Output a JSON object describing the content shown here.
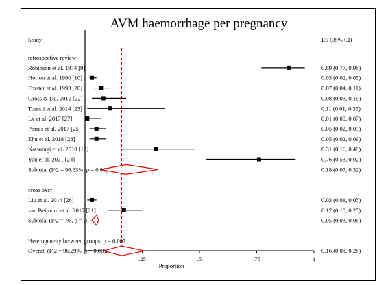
{
  "chart_data": {
    "type": "forest",
    "title": "AVM haemorrhage per pregnancy",
    "column_headers": {
      "study": "Study",
      "es": "ES (95% CI)"
    },
    "xlabel": "Proportion",
    "xlim": [
      0,
      1
    ],
    "xticks": [
      {
        "value": 0.25,
        "label": ".25"
      },
      {
        "value": 0.5,
        "label": ".5"
      },
      {
        "value": 0.75,
        "label": ".75"
      },
      {
        "value": 1,
        "label": "1"
      }
    ],
    "overall_reference_line": 0.16,
    "colors": {
      "summary": "#dd0000",
      "study": "#000000",
      "reference": "#dd0000"
    },
    "rows": [
      {
        "kind": "header",
        "label": "retrospective review"
      },
      {
        "kind": "study",
        "label": "Robinson et al. 1974 [9]",
        "es": 0.89,
        "lo": 0.77,
        "hi": 0.96,
        "text": "0.89 (0.77, 0.96)"
      },
      {
        "kind": "study",
        "label": "Horton et al. 1990 [10]",
        "es": 0.03,
        "lo": 0.02,
        "hi": 0.05,
        "text": "0.03 (0.02, 0.05)"
      },
      {
        "kind": "study",
        "label": "Forster et al. 1993 [20]",
        "es": 0.07,
        "lo": 0.04,
        "hi": 0.11,
        "text": "0.07 (0.04, 0.11)"
      },
      {
        "kind": "study",
        "label": "Gross & Du, 2012 [22]",
        "es": 0.08,
        "lo": 0.03,
        "hi": 0.18,
        "text": "0.08 (0.03, 0.18)"
      },
      {
        "kind": "study",
        "label": "Tonetti et al. 2014 [23]",
        "es": 0.11,
        "lo": 0.01,
        "hi": 0.35,
        "text": "0.11 (0.01, 0.35)"
      },
      {
        "kind": "study",
        "label": "Lv et al. 2017 [27]",
        "es": 0.01,
        "lo": 0.0,
        "hi": 0.07,
        "text": "0.01 (0.00, 0.07)"
      },
      {
        "kind": "study",
        "label": "Porras et al. 2017 [25]",
        "es": 0.05,
        "lo": 0.02,
        "hi": 0.09,
        "text": "0.05 (0.02, 0.09)"
      },
      {
        "kind": "study",
        "label": "Zhu et al. 2018 [28]",
        "es": 0.05,
        "lo": 0.02,
        "hi": 0.09,
        "text": "0.05 (0.02, 0.09)"
      },
      {
        "kind": "study",
        "label": "Katsuragi et al. 2018 [12]",
        "es": 0.31,
        "lo": 0.16,
        "hi": 0.48,
        "text": "0.31 (0.16, 0.48)"
      },
      {
        "kind": "study",
        "label": "Yan et al. 2021 [24]",
        "es": 0.76,
        "lo": 0.53,
        "hi": 0.92,
        "text": "0.76 (0.53, 0.92)"
      },
      {
        "kind": "subtotal",
        "label": "Subtotal  (I^2 = 96.63%, p = 0.00)",
        "es": 0.18,
        "lo": 0.07,
        "hi": 0.32,
        "text": "0.18 (0.07, 0.32)"
      },
      {
        "kind": "blank"
      },
      {
        "kind": "header",
        "label": "cross over"
      },
      {
        "kind": "study",
        "label": "Liu et al. 2014 [26]",
        "es": 0.03,
        "lo": 0.01,
        "hi": 0.05,
        "text": "0.03 (0.01, 0.05)"
      },
      {
        "kind": "study",
        "label": "van Beijnum et al. 2017 [21]",
        "es": 0.17,
        "lo": 0.1,
        "hi": 0.25,
        "text": "0.17 (0.10, 0.25)"
      },
      {
        "kind": "subtotal",
        "label": "Subtotal  (I^2 = .%, p = .)",
        "es": 0.05,
        "lo": 0.03,
        "hi": 0.06,
        "text": "0.05 (0.03, 0.06)"
      },
      {
        "kind": "blank"
      },
      {
        "kind": "header",
        "label": "Heterogeneity between groups: p = 0.007"
      },
      {
        "kind": "overall",
        "label": "Overall  (I^2 = 96.29%, p = 0.00);",
        "es": 0.16,
        "lo": 0.08,
        "hi": 0.26,
        "text": "0.16 (0.08, 0.26)"
      }
    ]
  }
}
